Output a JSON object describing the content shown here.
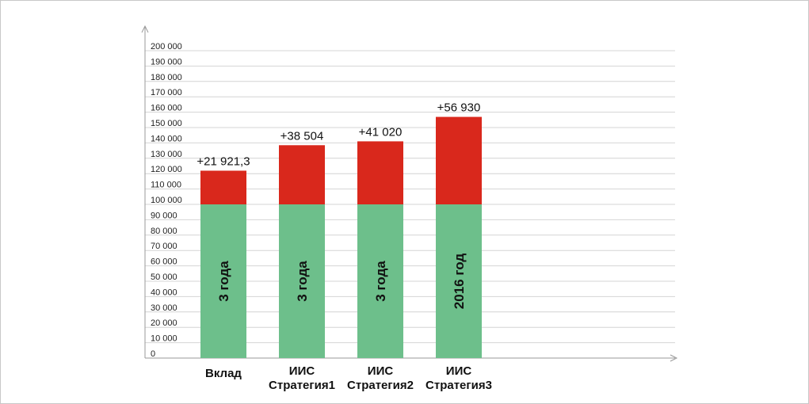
{
  "chart_data": {
    "type": "bar",
    "stacked": true,
    "categories": [
      [
        "Вклад"
      ],
      [
        "ИИС",
        "Стратегия1"
      ],
      [
        "ИИС",
        "Стратегия2"
      ],
      [
        "ИИС",
        "Стратегия3"
      ]
    ],
    "series": [
      {
        "values": [
          100000,
          100000,
          100000,
          100000
        ],
        "color": "#6dbf8b"
      },
      {
        "values": [
          21921.3,
          38504,
          41020,
          56930
        ],
        "color": "#d9281c"
      }
    ],
    "data_labels": [
      "+21 921,3",
      "+38 504",
      "+41 020",
      "+56 930"
    ],
    "bar_inner_labels": [
      "3 года",
      "3 года",
      "3 года",
      "2016 год"
    ],
    "ylim": [
      0,
      200000
    ],
    "yticks": [
      "0",
      "10 000",
      "20 000",
      "30 000",
      "40 000",
      "50 000",
      "60 000",
      "70 000",
      "80 000",
      "90 000",
      "100 000",
      "110 000",
      "120 000",
      "130 000",
      "140 000",
      "150 000",
      "160 000",
      "170 000",
      "180 000",
      "190 000",
      "200 000"
    ],
    "grid": true,
    "legend": "none"
  }
}
